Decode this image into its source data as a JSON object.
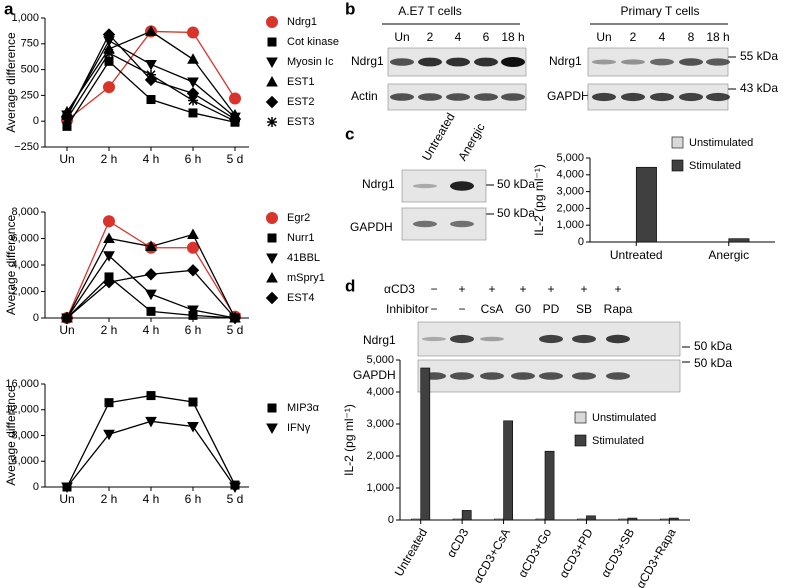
{
  "panel_labels": [
    "a",
    "b",
    "c",
    "d"
  ],
  "blot_b": {
    "left": {
      "title": "A.E7 T cells",
      "lanes": [
        "Un",
        "2",
        "4",
        "6",
        "18 h"
      ],
      "rows": [
        "Ndrg1",
        "Actin"
      ]
    },
    "right": {
      "title": "Primary T cells",
      "lanes": [
        "Un",
        "2",
        "4",
        "8",
        "18 h"
      ],
      "rows": [
        "Ndrg1",
        "GAPDH"
      ]
    },
    "markers": [
      "55 kDa",
      "43 kDa"
    ]
  },
  "blot_c": {
    "lanes": [
      "Untreated",
      "Anergic"
    ],
    "rows": [
      "Ndrg1",
      "GAPDH"
    ],
    "markers": [
      "50 kDa",
      "50 kDa"
    ]
  },
  "blot_d": {
    "conditions": [
      {
        "label": "αCD3",
        "values": [
          "−",
          "+",
          "+",
          "+",
          "+",
          "+",
          "+"
        ]
      },
      {
        "label": "Inhibitor",
        "values": [
          "−",
          "−",
          "CsA",
          "G0",
          "PD",
          "SB",
          "Rapa"
        ]
      }
    ],
    "rows": [
      "Ndrg1",
      "GAPDH"
    ],
    "markers": [
      "50 kDa",
      "50 kDa"
    ]
  },
  "chart_data": [
    {
      "type": "line",
      "ylabel": "Average difference",
      "categories": [
        "Un",
        "2 h",
        "4 h",
        "6 h",
        "5 d"
      ],
      "ylim": [
        -250,
        1000
      ],
      "yticks": [
        {
          "value": -250,
          "label": "−250"
        },
        0,
        250,
        500,
        750,
        {
          "value": 1000,
          "label": "1,000"
        }
      ],
      "series": [
        {
          "name": "Ndrg1",
          "color": "#d9342b",
          "marker": "circle",
          "values": [
            10,
            330,
            870,
            860,
            220
          ]
        },
        {
          "name": "Cot kinase",
          "color": "#000000",
          "marker": "square",
          "values": [
            -50,
            580,
            210,
            80,
            -10
          ]
        },
        {
          "name": "Myosin Ic",
          "color": "#000000",
          "marker": "triangle-down",
          "values": [
            60,
            780,
            550,
            380,
            40
          ]
        },
        {
          "name": "EST1",
          "color": "#000000",
          "marker": "triangle-up",
          "values": [
            90,
            700,
            870,
            600,
            60
          ]
        },
        {
          "name": "EST2",
          "color": "#000000",
          "marker": "diamond",
          "values": [
            40,
            840,
            400,
            270,
            20
          ]
        },
        {
          "name": "EST3",
          "color": "#000000",
          "marker": "star",
          "values": [
            20,
            660,
            450,
            200,
            0
          ]
        }
      ]
    },
    {
      "type": "line",
      "ylabel": "Average difference",
      "categories": [
        "Un",
        "2 h",
        "4 h",
        "6 h",
        "5 d"
      ],
      "ylim": [
        0,
        8000
      ],
      "yticks": [
        0,
        {
          "value": 2000,
          "label": "2,000"
        },
        {
          "value": 4000,
          "label": "4,000"
        },
        {
          "value": 6000,
          "label": "6,000"
        },
        {
          "value": 8000,
          "label": "8,000"
        }
      ],
      "series": [
        {
          "name": "Egr2",
          "color": "#d9342b",
          "marker": "circle",
          "values": [
            0,
            7300,
            5300,
            5300,
            100
          ]
        },
        {
          "name": "Nurr1",
          "color": "#000000",
          "marker": "square",
          "values": [
            0,
            3100,
            500,
            200,
            0
          ]
        },
        {
          "name": "41BBL",
          "color": "#000000",
          "marker": "triangle-down",
          "values": [
            0,
            4700,
            1800,
            600,
            0
          ]
        },
        {
          "name": "mSpry1",
          "color": "#000000",
          "marker": "triangle-up",
          "values": [
            0,
            6000,
            5400,
            6300,
            0
          ]
        },
        {
          "name": "EST4",
          "color": "#000000",
          "marker": "diamond",
          "values": [
            0,
            2700,
            3300,
            3600,
            0
          ]
        }
      ]
    },
    {
      "type": "line",
      "ylabel": "Average difference",
      "categories": [
        "Un",
        "2 h",
        "4 h",
        "6 h",
        "5 d"
      ],
      "ylim": [
        0,
        16000
      ],
      "yticks": [
        0,
        {
          "value": 4000,
          "label": "4,000"
        },
        {
          "value": 8000,
          "label": "8,000"
        },
        {
          "value": 12000,
          "label": "12,000"
        },
        {
          "value": 16000,
          "label": "16,000"
        }
      ],
      "series": [
        {
          "name": "MIP3α",
          "color": "#000000",
          "marker": "square",
          "values": [
            0,
            13100,
            14200,
            13200,
            300
          ]
        },
        {
          "name": "IFNγ",
          "color": "#000000",
          "marker": "triangle-down",
          "values": [
            0,
            8200,
            10200,
            9400,
            0
          ]
        }
      ]
    },
    {
      "type": "bar",
      "ylabel": "IL-2 (pg ml⁻¹)",
      "categories": [
        "Untreated",
        "Anergic"
      ],
      "ylim": [
        0,
        5000
      ],
      "yticks": [
        0,
        {
          "value": 1000,
          "label": "1,000"
        },
        {
          "value": 2000,
          "label": "2,000"
        },
        {
          "value": 3000,
          "label": "3,000"
        },
        {
          "value": 4000,
          "label": "4,000"
        },
        {
          "value": 5000,
          "label": "5,000"
        }
      ],
      "series": [
        {
          "name": "Unstimulated",
          "color": "#d9d9d9",
          "values": [
            0,
            0
          ]
        },
        {
          "name": "Stimulated",
          "color": "#404040",
          "values": [
            4450,
            200
          ]
        }
      ]
    },
    {
      "type": "bar",
      "ylabel": "IL-2 (pg ml⁻¹)",
      "categories": [
        "Untreated",
        "αCD3",
        "αCD3+CsA",
        "αCD3+Go",
        "αCD3+PD",
        "αCD3+SB",
        "αCD3+Rapa"
      ],
      "ylim": [
        0,
        5000
      ],
      "yticks": [
        0,
        {
          "value": 1000,
          "label": "1,000"
        },
        {
          "value": 2000,
          "label": "2,000"
        },
        {
          "value": 3000,
          "label": "3,000"
        },
        {
          "value": 4000,
          "label": "4,000"
        },
        {
          "value": 5000,
          "label": "5,000"
        }
      ],
      "series": [
        {
          "name": "Unstimulated",
          "color": "#d9d9d9",
          "values": [
            30,
            30,
            30,
            30,
            30,
            30,
            30
          ]
        },
        {
          "name": "Stimulated",
          "color": "#404040",
          "values": [
            4750,
            300,
            3100,
            2150,
            130,
            60,
            60
          ]
        }
      ]
    }
  ]
}
